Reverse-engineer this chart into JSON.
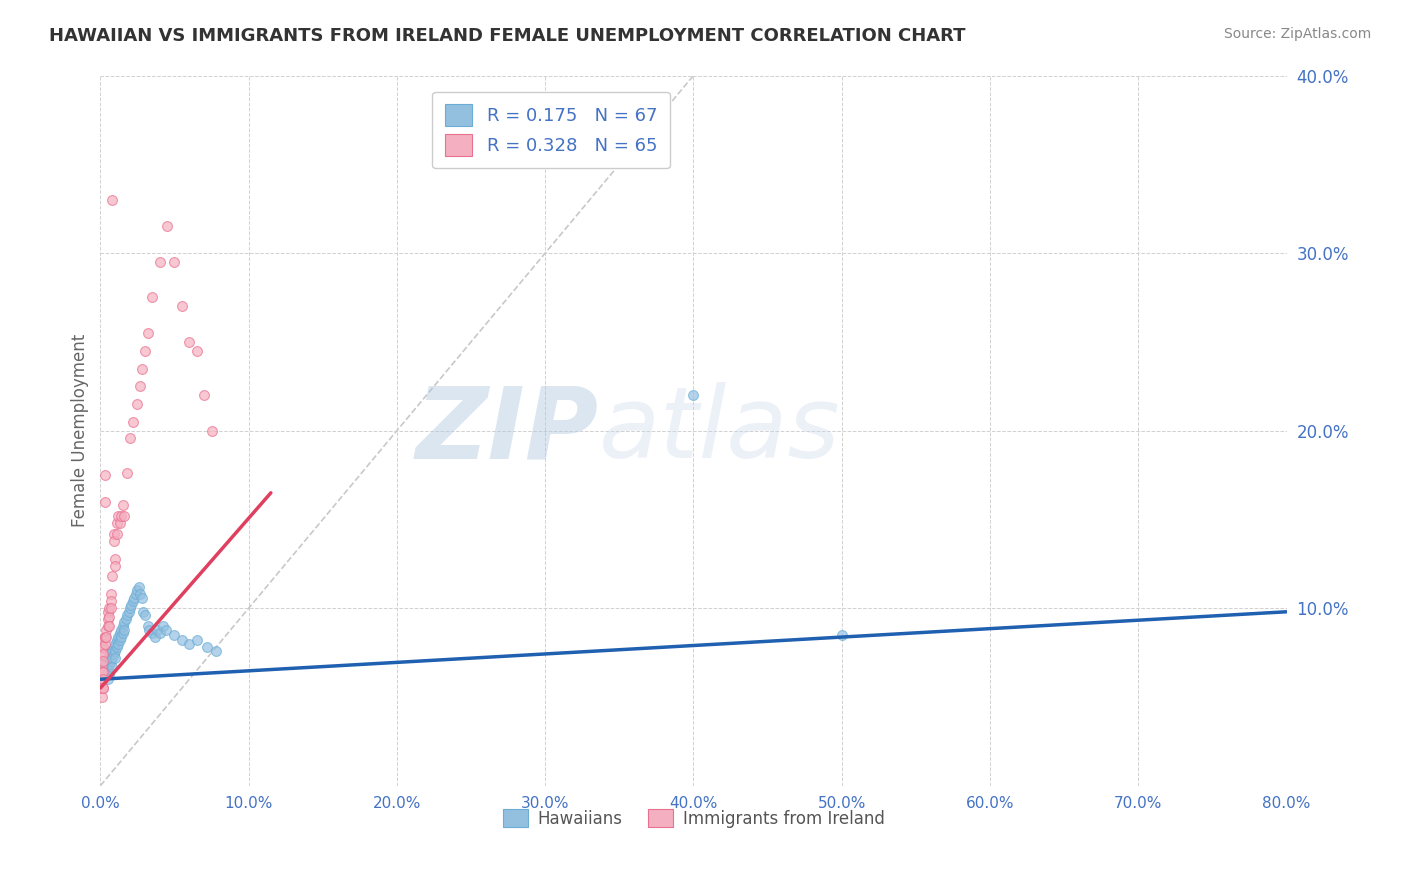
{
  "title": "HAWAIIAN VS IMMIGRANTS FROM IRELAND FEMALE UNEMPLOYMENT CORRELATION CHART",
  "source_text": "Source: ZipAtlas.com",
  "ylabel": "Female Unemployment",
  "xlim": [
    0.0,
    0.8
  ],
  "ylim": [
    0.0,
    0.4
  ],
  "xticks": [
    0.0,
    0.1,
    0.2,
    0.3,
    0.4,
    0.5,
    0.6,
    0.7,
    0.8
  ],
  "xticklabels": [
    "0.0%",
    "",
    "",
    "",
    "",
    "",
    "",
    "",
    "80.0%"
  ],
  "yticks": [
    0.0,
    0.1,
    0.2,
    0.3,
    0.4
  ],
  "ytick_right_labels": [
    "",
    "10.0%",
    "20.0%",
    "30.0%",
    "40.0%"
  ],
  "hawaiian_color": "#94C0E0",
  "hawaii_edge_color": "#6AADD5",
  "ireland_color": "#F4B0C0",
  "ireland_edge_color": "#E87090",
  "hawaii_line_color": "#2060B0",
  "ireland_line_color": "#E04060",
  "ref_line_color": "#BBBBBB",
  "legend_R1": "0.175",
  "legend_N1": "67",
  "legend_R2": "0.328",
  "legend_N2": "65",
  "legend_text_color": "#4472C4",
  "watermark": "ZIPAtlas",
  "watermark_color": "#C8D8E8",
  "background_color": "#FFFFFF",
  "grid_color": "#CCCCCC",
  "tick_label_color": "#4472C4",
  "hawaii_line_x": [
    0.0,
    0.8
  ],
  "hawaii_line_y": [
    0.06,
    0.098
  ],
  "ireland_line_x": [
    0.0,
    0.115
  ],
  "ireland_line_y": [
    0.055,
    0.165
  ],
  "hawaii_scatter_x": [
    0.001,
    0.002,
    0.003,
    0.003,
    0.004,
    0.004,
    0.004,
    0.005,
    0.005,
    0.005,
    0.005,
    0.006,
    0.006,
    0.006,
    0.006,
    0.007,
    0.007,
    0.008,
    0.008,
    0.008,
    0.009,
    0.009,
    0.01,
    0.01,
    0.01,
    0.011,
    0.011,
    0.012,
    0.012,
    0.013,
    0.013,
    0.014,
    0.014,
    0.015,
    0.015,
    0.016,
    0.016,
    0.017,
    0.018,
    0.019,
    0.02,
    0.021,
    0.022,
    0.023,
    0.024,
    0.025,
    0.026,
    0.027,
    0.028,
    0.029,
    0.03,
    0.032,
    0.033,
    0.035,
    0.037,
    0.038,
    0.04,
    0.042,
    0.044,
    0.05,
    0.055,
    0.06,
    0.065,
    0.072,
    0.078,
    0.4,
    0.5
  ],
  "hawaii_scatter_y": [
    0.065,
    0.07,
    0.068,
    0.062,
    0.07,
    0.068,
    0.062,
    0.072,
    0.068,
    0.065,
    0.06,
    0.074,
    0.072,
    0.068,
    0.063,
    0.075,
    0.07,
    0.076,
    0.072,
    0.067,
    0.078,
    0.074,
    0.08,
    0.076,
    0.072,
    0.082,
    0.078,
    0.084,
    0.08,
    0.086,
    0.082,
    0.088,
    0.084,
    0.09,
    0.086,
    0.092,
    0.088,
    0.094,
    0.096,
    0.098,
    0.1,
    0.102,
    0.104,
    0.106,
    0.108,
    0.11,
    0.112,
    0.108,
    0.106,
    0.098,
    0.096,
    0.09,
    0.088,
    0.086,
    0.084,
    0.088,
    0.086,
    0.09,
    0.088,
    0.085,
    0.082,
    0.08,
    0.082,
    0.078,
    0.076,
    0.22,
    0.085
  ],
  "ireland_scatter_x": [
    0.0,
    0.0,
    0.001,
    0.001,
    0.001,
    0.001,
    0.001,
    0.001,
    0.001,
    0.001,
    0.002,
    0.002,
    0.002,
    0.002,
    0.002,
    0.002,
    0.002,
    0.002,
    0.003,
    0.003,
    0.003,
    0.003,
    0.003,
    0.004,
    0.004,
    0.005,
    0.005,
    0.005,
    0.006,
    0.006,
    0.006,
    0.007,
    0.007,
    0.007,
    0.008,
    0.008,
    0.009,
    0.009,
    0.01,
    0.01,
    0.011,
    0.011,
    0.012,
    0.013,
    0.014,
    0.015,
    0.016,
    0.018,
    0.02,
    0.022,
    0.025,
    0.027,
    0.028,
    0.03,
    0.032,
    0.035,
    0.04,
    0.045,
    0.05,
    0.055,
    0.06,
    0.065,
    0.07,
    0.075
  ],
  "ireland_scatter_y": [
    0.06,
    0.055,
    0.068,
    0.064,
    0.06,
    0.055,
    0.05,
    0.074,
    0.078,
    0.064,
    0.055,
    0.082,
    0.078,
    0.074,
    0.07,
    0.064,
    0.06,
    0.055,
    0.084,
    0.08,
    0.175,
    0.16,
    0.084,
    0.088,
    0.084,
    0.098,
    0.094,
    0.09,
    0.1,
    0.095,
    0.09,
    0.108,
    0.104,
    0.1,
    0.33,
    0.118,
    0.142,
    0.138,
    0.128,
    0.124,
    0.148,
    0.142,
    0.152,
    0.148,
    0.152,
    0.158,
    0.152,
    0.176,
    0.196,
    0.205,
    0.215,
    0.225,
    0.235,
    0.245,
    0.255,
    0.275,
    0.295,
    0.315,
    0.295,
    0.27,
    0.25,
    0.245,
    0.22,
    0.2
  ]
}
